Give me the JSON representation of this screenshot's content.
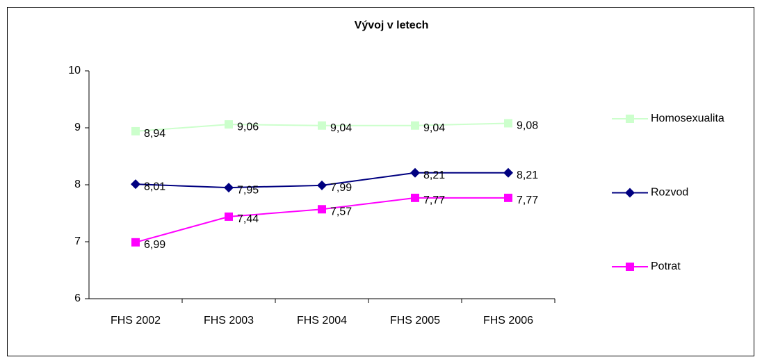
{
  "chart_data": {
    "type": "line",
    "title": "Vývoj v letech",
    "categories": [
      "FHS 2002",
      "FHS 2003",
      "FHS 2004",
      "FHS 2005",
      "FHS 2006"
    ],
    "series": [
      {
        "name": "Homosexualita",
        "color": "#ccffcc",
        "marker": "square",
        "values": [
          8.94,
          9.06,
          9.04,
          9.04,
          9.08
        ],
        "value_labels": [
          "8,94",
          "9,06",
          "9,04",
          "9,04",
          "9,08"
        ]
      },
      {
        "name": "Rozvod",
        "color": "#000080",
        "marker": "diamond",
        "values": [
          8.01,
          7.95,
          7.99,
          8.21,
          8.21
        ],
        "value_labels": [
          "8,01",
          "7,95",
          "7,99",
          "8,21",
          "8,21"
        ]
      },
      {
        "name": "Potrat",
        "color": "#ff00ff",
        "marker": "square",
        "values": [
          6.99,
          7.44,
          7.57,
          7.77,
          7.77
        ],
        "value_labels": [
          "6,99",
          "7,44",
          "7,57",
          "7,77",
          "7,77"
        ]
      }
    ],
    "ylim": [
      6,
      10
    ],
    "yticks": [
      6,
      7,
      8,
      9,
      10
    ],
    "legend": "right"
  }
}
